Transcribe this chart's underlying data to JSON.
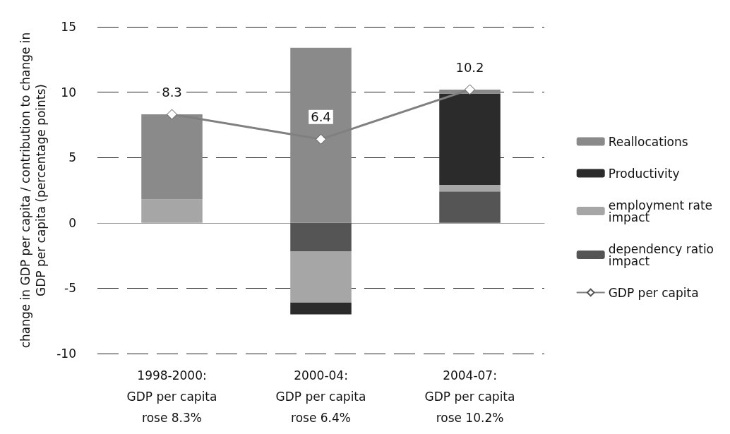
{
  "chart_data": {
    "type": "bar",
    "stacked": true,
    "ylabel": "change in GDP per capita / contribution to change in\nGDP per capita (percentage points)",
    "categories": [
      "1998-2000:\nGDP per capita\nrose 8.3%",
      "2000-04:\nGDP per capita\nrose 6.4%",
      "2004-07:\nGDP per capita\nrose 10.2%"
    ],
    "series": [
      {
        "name": "dependency ratio\nimpact",
        "color": "#555555",
        "values": [
          0,
          -2.2,
          2.4
        ]
      },
      {
        "name": "employment rate\nimpact",
        "color": "#a6a6a6",
        "values": [
          1.8,
          -3.9,
          0.5
        ]
      },
      {
        "name": "Productivity",
        "color": "#2b2b2b",
        "values": [
          0,
          -0.9,
          7.0
        ]
      },
      {
        "name": "Reallocations",
        "color": "#8a8a8a",
        "values": [
          6.5,
          13.4,
          0.3
        ]
      },
      {
        "name": "GDP per capita",
        "type": "line",
        "color": "#808080",
        "marker": "diamond",
        "values": [
          8.3,
          6.4,
          10.2
        ],
        "value_labels": [
          "8.3",
          "6.4",
          "10.2"
        ]
      }
    ],
    "ylim": [
      -10,
      15
    ],
    "yticks": [
      -10,
      -5,
      0,
      5,
      10,
      15
    ],
    "grid": "y",
    "legend": "right"
  }
}
